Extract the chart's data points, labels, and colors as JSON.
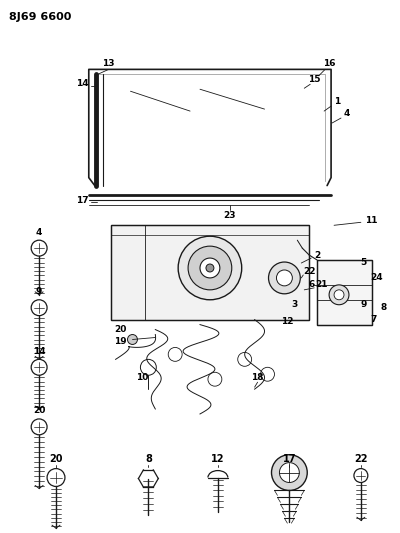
{
  "title": "8J69 6600",
  "bg_color": "#ffffff",
  "line_color": "#1a1a1a",
  "figsize": [
    4.0,
    5.33
  ],
  "dpi": 100,
  "xlim": [
    0,
    400
  ],
  "ylim": [
    0,
    533
  ]
}
